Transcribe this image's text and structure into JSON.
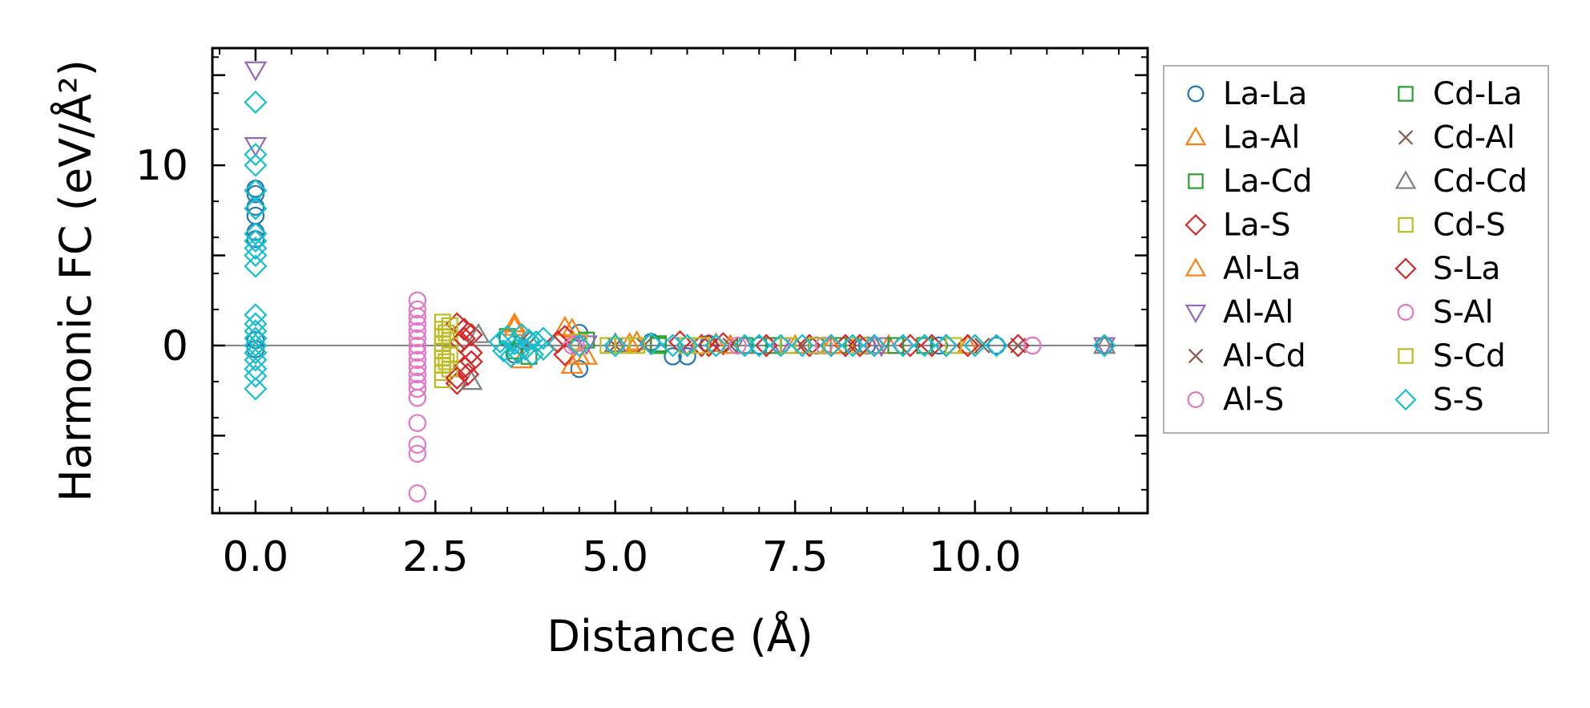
{
  "chart_data": {
    "type": "scatter",
    "title": "",
    "xlabel": "Distance (Å)",
    "ylabel": "Harmonic FC (eV/Å²)",
    "xlim": [
      -0.6,
      12.4
    ],
    "ylim": [
      -9.3,
      16.5
    ],
    "xticks": [
      0.0,
      2.5,
      5.0,
      7.5,
      10.0
    ],
    "xtick_labels": [
      "0.0",
      "2.5",
      "5.0",
      "7.5",
      "10.0"
    ],
    "yticks": [
      0,
      10
    ],
    "ytick_labels": [
      "0",
      "10"
    ],
    "zero_line": true,
    "legend_position": "outside-right",
    "series": [
      {
        "name": "La-La",
        "marker": "circle",
        "color": "#1f77b4",
        "points": [
          [
            0,
            8.7
          ],
          [
            0,
            8.4
          ],
          [
            0,
            7.7
          ],
          [
            0,
            7.2
          ],
          [
            0,
            6.3
          ],
          [
            0,
            5.9
          ],
          [
            0,
            0.3
          ],
          [
            0,
            -0.2
          ],
          [
            3.5,
            0.4
          ],
          [
            3.6,
            -0.5
          ],
          [
            4.5,
            0.7
          ],
          [
            4.5,
            -1.3
          ],
          [
            5.5,
            0.2
          ],
          [
            5.8,
            -0.6
          ],
          [
            6.0,
            -0.6
          ],
          [
            6.3,
            0.1
          ],
          [
            7.0,
            0
          ],
          [
            7.8,
            0
          ],
          [
            8.5,
            0
          ],
          [
            9.5,
            0
          ],
          [
            10.3,
            0
          ],
          [
            11.8,
            0
          ]
        ]
      },
      {
        "name": "La-Al",
        "marker": "triangle-up",
        "color": "#ff7f0e",
        "points": [
          [
            3.6,
            1.2
          ],
          [
            3.7,
            -0.8
          ],
          [
            4.4,
            -1.1
          ],
          [
            4.6,
            -0.6
          ],
          [
            4.4,
            0.9
          ],
          [
            5.3,
            0.2
          ],
          [
            6.4,
            0.1
          ],
          [
            7.5,
            0
          ],
          [
            8.8,
            0
          ],
          [
            9.9,
            0
          ]
        ]
      },
      {
        "name": "La-Cd",
        "marker": "square",
        "color": "#2ca02c",
        "points": [
          [
            3.5,
            0.5
          ],
          [
            3.8,
            -0.6
          ],
          [
            4.6,
            0.3
          ],
          [
            5.6,
            0.1
          ],
          [
            6.8,
            0
          ],
          [
            8.1,
            0
          ],
          [
            9.3,
            0
          ]
        ]
      },
      {
        "name": "La-S",
        "marker": "diamond",
        "color": "#d62728",
        "points": [
          [
            2.8,
            1.2
          ],
          [
            2.8,
            -2.1
          ],
          [
            2.9,
            0.9
          ],
          [
            2.9,
            -1.2
          ],
          [
            3.0,
            0.6
          ],
          [
            3.0,
            -0.4
          ],
          [
            2.85,
            0.2
          ],
          [
            2.95,
            -1.6
          ],
          [
            4.3,
            0.5
          ],
          [
            4.3,
            -0.5
          ],
          [
            5.9,
            0.2
          ],
          [
            6.2,
            0
          ],
          [
            6.5,
            0.1
          ],
          [
            7.7,
            0
          ],
          [
            8.2,
            0
          ],
          [
            9.1,
            0
          ],
          [
            9.6,
            0
          ],
          [
            9.9,
            0
          ]
        ]
      },
      {
        "name": "Al-La",
        "marker": "triangle-up",
        "color": "#ff7f0e",
        "points": [
          [
            3.6,
            1.0
          ],
          [
            4.3,
            1.0
          ],
          [
            4.5,
            -0.6
          ],
          [
            5.2,
            0.1
          ],
          [
            6.6,
            0
          ],
          [
            8.0,
            0
          ]
        ]
      },
      {
        "name": "Al-Al",
        "marker": "triangle-down",
        "color": "#9467bd",
        "points": [
          [
            0,
            15.3
          ],
          [
            0,
            11.1
          ],
          [
            4.6,
            0.1
          ],
          [
            6.0,
            0
          ],
          [
            7.3,
            0
          ],
          [
            8.7,
            0
          ],
          [
            11.8,
            0
          ]
        ]
      },
      {
        "name": "Al-Cd",
        "marker": "x",
        "color": "#8c564b",
        "points": [
          [
            3.7,
            0.3
          ],
          [
            5.0,
            0
          ],
          [
            6.6,
            0
          ],
          [
            8.3,
            0
          ],
          [
            10.6,
            0
          ]
        ]
      },
      {
        "name": "Al-S",
        "marker": "circle",
        "color": "#e377c2",
        "points": [
          [
            2.25,
            2.5
          ],
          [
            2.25,
            2.0
          ],
          [
            2.25,
            1.6
          ],
          [
            2.25,
            1.2
          ],
          [
            2.25,
            0.8
          ],
          [
            2.25,
            0.4
          ],
          [
            2.25,
            0
          ],
          [
            2.25,
            -0.4
          ],
          [
            2.25,
            -0.8
          ],
          [
            2.25,
            -1.2
          ],
          [
            2.25,
            -1.6
          ],
          [
            2.25,
            -2.0
          ],
          [
            2.25,
            -2.4
          ],
          [
            2.25,
            -2.9
          ],
          [
            2.25,
            -4.3
          ],
          [
            2.25,
            -5.5
          ],
          [
            2.25,
            -6.0
          ],
          [
            2.25,
            -8.2
          ],
          [
            4.4,
            0
          ],
          [
            7.3,
            0
          ],
          [
            7.9,
            0
          ],
          [
            9.0,
            0
          ],
          [
            10.8,
            0
          ]
        ]
      },
      {
        "name": "Cd-La",
        "marker": "square",
        "color": "#2ca02c",
        "points": [
          [
            3.6,
            -0.3
          ],
          [
            5.6,
            0
          ],
          [
            7.2,
            0
          ],
          [
            8.9,
            0
          ]
        ]
      },
      {
        "name": "Cd-Al",
        "marker": "x",
        "color": "#8c564b",
        "points": [
          [
            3.8,
            0.1
          ],
          [
            5.4,
            0
          ],
          [
            7.6,
            0
          ],
          [
            10.1,
            0
          ]
        ]
      },
      {
        "name": "Cd-Cd",
        "marker": "triangle-up",
        "color": "#7f7f7f",
        "points": [
          [
            3.0,
            -2.0
          ],
          [
            3.1,
            0.6
          ],
          [
            5.0,
            0.1
          ],
          [
            6.8,
            0
          ],
          [
            8.6,
            0
          ],
          [
            11.8,
            0
          ]
        ]
      },
      {
        "name": "Cd-S",
        "marker": "square",
        "color": "#bcbd22",
        "points": [
          [
            2.6,
            1.3
          ],
          [
            2.6,
            0.9
          ],
          [
            2.6,
            0.5
          ],
          [
            2.6,
            0.1
          ],
          [
            2.6,
            -0.3
          ],
          [
            2.6,
            -0.7
          ],
          [
            2.6,
            -1.1
          ],
          [
            2.6,
            -1.5
          ],
          [
            2.6,
            -1.9
          ],
          [
            2.7,
            1.1
          ],
          [
            2.7,
            0.3
          ],
          [
            2.7,
            -0.5
          ],
          [
            2.7,
            -1.3
          ],
          [
            4.5,
            0.2
          ],
          [
            4.9,
            0
          ],
          [
            5.3,
            0
          ],
          [
            6.0,
            0
          ],
          [
            7.4,
            0
          ],
          [
            8.4,
            0
          ],
          [
            9.7,
            0
          ]
        ]
      },
      {
        "name": "S-La",
        "marker": "diamond",
        "color": "#d62728",
        "points": [
          [
            2.8,
            -1.8
          ],
          [
            2.9,
            0.4
          ],
          [
            3.0,
            -0.9
          ],
          [
            4.2,
            0.2
          ],
          [
            6.3,
            0
          ],
          [
            7.1,
            0
          ],
          [
            8.0,
            0
          ],
          [
            8.4,
            0
          ],
          [
            9.4,
            0
          ],
          [
            10.6,
            0
          ]
        ]
      },
      {
        "name": "S-Al",
        "marker": "circle",
        "color": "#e377c2",
        "points": [
          [
            4.45,
            0.1
          ],
          [
            6.7,
            0
          ],
          [
            8.6,
            0
          ],
          [
            10.8,
            0
          ]
        ]
      },
      {
        "name": "S-Cd",
        "marker": "square",
        "color": "#bcbd22",
        "points": [
          [
            2.65,
            -0.9
          ],
          [
            2.65,
            0.7
          ],
          [
            5.1,
            0
          ],
          [
            6.2,
            0
          ],
          [
            7.8,
            0
          ]
        ]
      },
      {
        "name": "S-S",
        "marker": "diamond",
        "color": "#17becf",
        "points": [
          [
            0,
            13.5
          ],
          [
            0,
            10.6
          ],
          [
            0,
            10.0
          ],
          [
            0,
            8.6
          ],
          [
            0,
            7.6
          ],
          [
            0,
            6.2
          ],
          [
            0,
            5.8
          ],
          [
            0,
            5.4
          ],
          [
            0,
            5.0
          ],
          [
            0,
            4.4
          ],
          [
            0,
            1.7
          ],
          [
            0,
            1.2
          ],
          [
            0,
            0.8
          ],
          [
            0,
            0.4
          ],
          [
            0,
            0
          ],
          [
            0,
            -0.4
          ],
          [
            0,
            -0.8
          ],
          [
            0,
            -1.3
          ],
          [
            0,
            -1.7
          ],
          [
            0,
            -2.4
          ],
          [
            3.4,
            0.2
          ],
          [
            3.45,
            -0.3
          ],
          [
            3.5,
            0.5
          ],
          [
            3.55,
            -0.6
          ],
          [
            3.6,
            0.1
          ],
          [
            3.65,
            -0.4
          ],
          [
            3.7,
            0.6
          ],
          [
            3.75,
            -0.2
          ],
          [
            3.8,
            0.3
          ],
          [
            3.85,
            -0.5
          ],
          [
            3.9,
            0.2
          ],
          [
            4.0,
            -0.2
          ],
          [
            4.0,
            0.4
          ],
          [
            4.5,
            0
          ],
          [
            5.0,
            0
          ],
          [
            5.5,
            0.1
          ],
          [
            5.8,
            0
          ],
          [
            6.0,
            0
          ],
          [
            6.4,
            0
          ],
          [
            6.8,
            0
          ],
          [
            7.0,
            0
          ],
          [
            7.3,
            0
          ],
          [
            7.6,
            0
          ],
          [
            8.0,
            0
          ],
          [
            8.3,
            0
          ],
          [
            8.6,
            0
          ],
          [
            9.0,
            0
          ],
          [
            9.3,
            0
          ],
          [
            9.6,
            0
          ],
          [
            10.0,
            0
          ],
          [
            10.3,
            0
          ],
          [
            11.8,
            0
          ]
        ]
      }
    ]
  }
}
